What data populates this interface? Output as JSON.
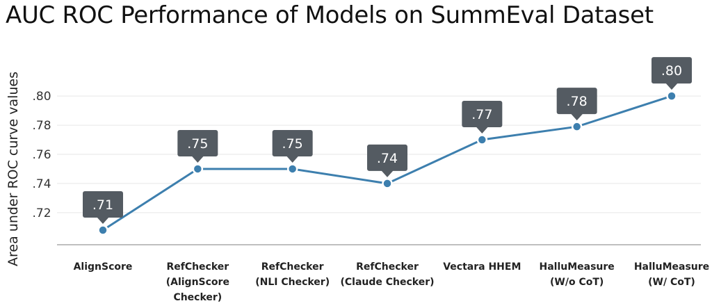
{
  "chart_data": {
    "type": "line",
    "title": "AUC ROC Performance of Models on SummEval Dataset",
    "xlabel": "",
    "ylabel": "Area under ROC curve values",
    "categories": [
      [
        "AlignScore"
      ],
      [
        "RefChecker",
        "(AlignScore",
        "Checker)"
      ],
      [
        "RefChecker",
        "(NLI Checker)"
      ],
      [
        "RefChecker",
        "(Claude Checker)"
      ],
      [
        "Vectara HHEM"
      ],
      [
        "HalluMeasure",
        "(W/o CoT)"
      ],
      [
        "HalluMeasure",
        "(W/ CoT)"
      ]
    ],
    "values": [
      0.708,
      0.75,
      0.75,
      0.74,
      0.77,
      0.779,
      0.8
    ],
    "data_labels": [
      ".71",
      ".75",
      ".75",
      ".74",
      ".77",
      ".78",
      ".80"
    ],
    "y_ticks": [
      0.72,
      0.74,
      0.76,
      0.78,
      0.8
    ],
    "y_tick_labels": [
      ".72",
      ".74",
      ".76",
      ".78",
      ".80"
    ],
    "ylim": [
      0.698,
      0.822
    ],
    "grid": true,
    "colors": {
      "line": "#3d7fae",
      "marker_fill": "#3d7fae",
      "marker_edge": "#ffffff",
      "callout": "#545b62",
      "grid": "#e6e6e6",
      "axis": "#aaaaaa"
    }
  }
}
